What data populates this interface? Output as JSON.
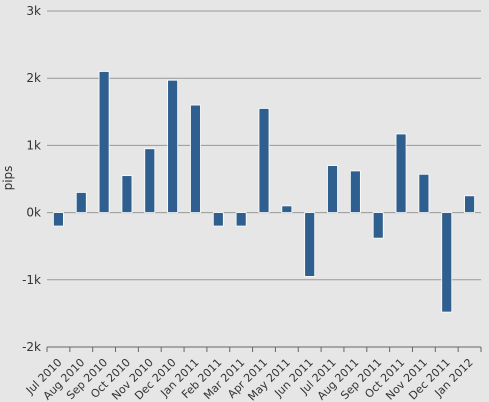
{
  "chart_data": {
    "type": "bar",
    "title": "",
    "xlabel": "",
    "ylabel": "pips",
    "ylim": [
      -2000,
      3000
    ],
    "yticks": [
      3000,
      2000,
      1000,
      0,
      -1000,
      -2000
    ],
    "ytick_labels": [
      "3k",
      "2k",
      "1k",
      "0k",
      "-1k",
      "-2k"
    ],
    "grid": true,
    "colors": {
      "background": "#e6e6e6",
      "bar": "#2f5f8f",
      "grid": "#999999",
      "axis": "#666666",
      "text": "#333333"
    },
    "categories": [
      "Jul 2010",
      "Aug 2010",
      "Sep 2010",
      "Oct 2010",
      "Nov 2010",
      "Dec 2010",
      "Jan 2011",
      "Feb 2011",
      "Mar 2011",
      "Apr 2011",
      "May 2011",
      "Jun 2011",
      "Jul 2011",
      "Aug 2011",
      "Sep 2011",
      "Oct 2011",
      "Nov 2011",
      "Dec 2011",
      "Jan 2012"
    ],
    "values": [
      -200,
      300,
      2100,
      550,
      950,
      1970,
      1600,
      -200,
      -200,
      1550,
      100,
      -950,
      700,
      620,
      -380,
      1170,
      570,
      -1480,
      250
    ]
  }
}
